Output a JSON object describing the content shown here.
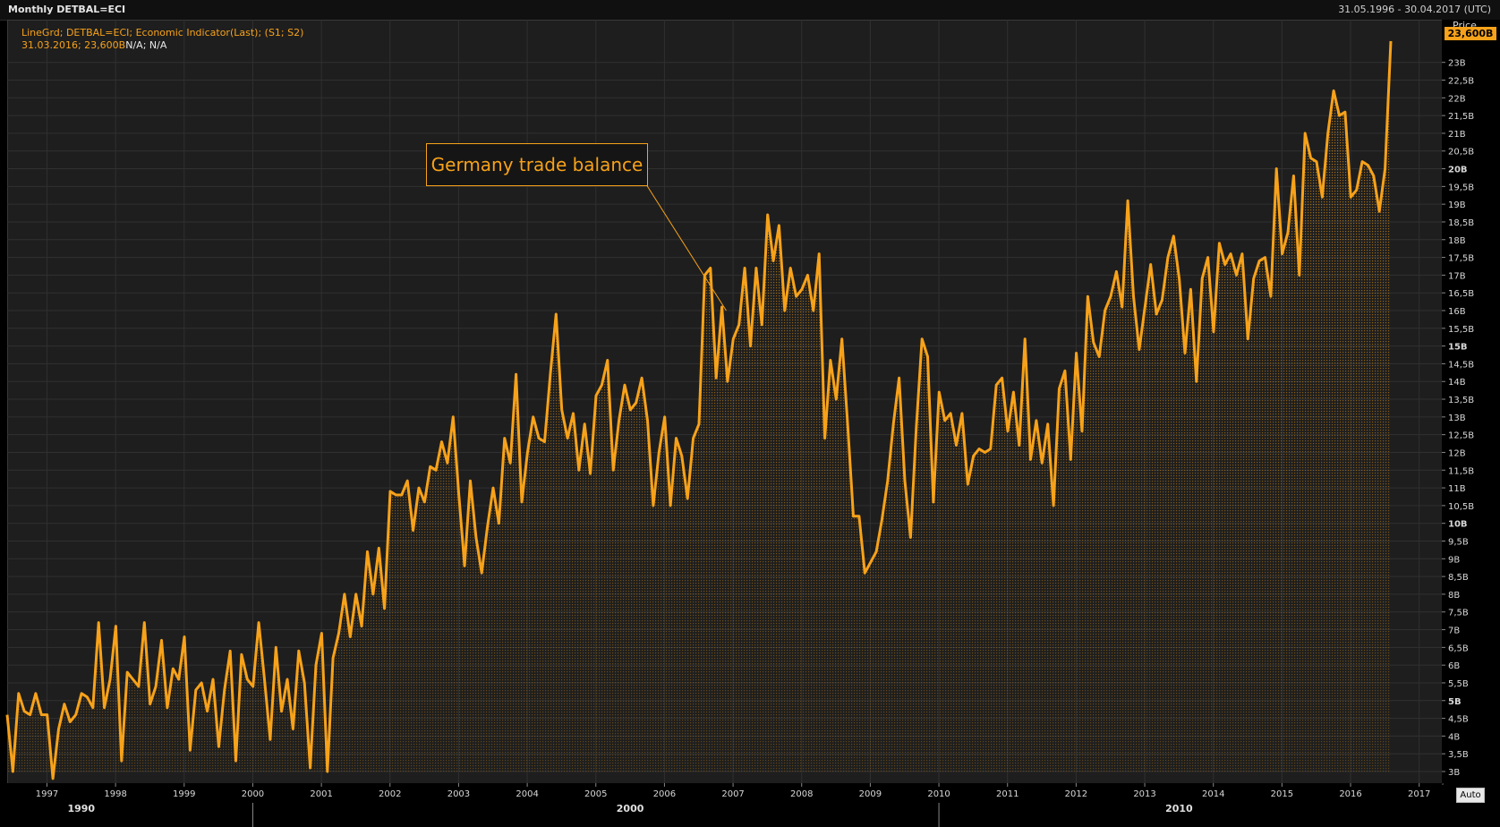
{
  "header": {
    "title": "Monthly DETBAL=ECI",
    "range": "31.05.1996 - 30.04.2017 (UTC)"
  },
  "legend": {
    "line1": "LineGrd; DETBAL=ECI; Economic Indicator(Last); (S1; S2)",
    "line2_date_value": "31.03.2016; 23,600B",
    "line2_na": "N/A; N/A"
  },
  "annotation": {
    "text": "Germany trade balance"
  },
  "price_axis": {
    "header": "Price",
    "last_value": "23,600B",
    "auto_label": "Auto"
  },
  "colors": {
    "line": "#f7a21a",
    "plot_bg": "#1e1e1e",
    "grid": "#303030",
    "axis_text": "#d8d8d8"
  },
  "chart_data": {
    "type": "area",
    "y_unit": "B",
    "ylim": [
      3,
      23.8
    ],
    "y_ticks": [
      {
        "v": 3,
        "label": "3B"
      },
      {
        "v": 3.5,
        "label": "3,5B"
      },
      {
        "v": 4,
        "label": "4B"
      },
      {
        "v": 4.5,
        "label": "4,5B"
      },
      {
        "v": 5,
        "label": "5B",
        "bold": true
      },
      {
        "v": 5.5,
        "label": "5,5B"
      },
      {
        "v": 6,
        "label": "6B"
      },
      {
        "v": 6.5,
        "label": "6,5B"
      },
      {
        "v": 7,
        "label": "7B"
      },
      {
        "v": 7.5,
        "label": "7,5B"
      },
      {
        "v": 8,
        "label": "8B"
      },
      {
        "v": 8.5,
        "label": "8,5B"
      },
      {
        "v": 9,
        "label": "9B"
      },
      {
        "v": 9.5,
        "label": "9,5B"
      },
      {
        "v": 10,
        "label": "10B",
        "bold": true
      },
      {
        "v": 10.5,
        "label": "10,5B"
      },
      {
        "v": 11,
        "label": "11B"
      },
      {
        "v": 11.5,
        "label": "11,5B"
      },
      {
        "v": 12,
        "label": "12B"
      },
      {
        "v": 12.5,
        "label": "12,5B"
      },
      {
        "v": 13,
        "label": "13B"
      },
      {
        "v": 13.5,
        "label": "13,5B"
      },
      {
        "v": 14,
        "label": "14B"
      },
      {
        "v": 14.5,
        "label": "14,5B"
      },
      {
        "v": 15,
        "label": "15B",
        "bold": true
      },
      {
        "v": 15.5,
        "label": "15,5B"
      },
      {
        "v": 16,
        "label": "16B"
      },
      {
        "v": 16.5,
        "label": "16,5B"
      },
      {
        "v": 17,
        "label": "17B"
      },
      {
        "v": 17.5,
        "label": "17,5B"
      },
      {
        "v": 18,
        "label": "18B"
      },
      {
        "v": 18.5,
        "label": "18,5B"
      },
      {
        "v": 19,
        "label": "19B"
      },
      {
        "v": 19.5,
        "label": "19,5B"
      },
      {
        "v": 20,
        "label": "20B",
        "bold": true
      },
      {
        "v": 20.5,
        "label": "20,5B"
      },
      {
        "v": 21,
        "label": "21B"
      },
      {
        "v": 21.5,
        "label": "21,5B"
      },
      {
        "v": 22,
        "label": "22B"
      },
      {
        "v": 22.5,
        "label": "22,5B"
      },
      {
        "v": 23,
        "label": "23B"
      }
    ],
    "x_range": [
      1996.42,
      2017.33
    ],
    "x_ticks": [
      "1997",
      "1998",
      "1999",
      "2000",
      "2001",
      "2002",
      "2003",
      "2004",
      "2005",
      "2006",
      "2007",
      "2008",
      "2009",
      "2010",
      "2011",
      "2012",
      "2013",
      "2014",
      "2015",
      "2016",
      "2017"
    ],
    "decades": [
      {
        "label": "1990",
        "x": 1997.5
      },
      {
        "label": "2000",
        "x": 2005.5
      },
      {
        "label": "2010",
        "x": 2013.5
      }
    ],
    "decade_dividers": [
      2000,
      2010
    ],
    "annotation_target": {
      "x": 2006.9,
      "y": 16.0
    },
    "series": [
      {
        "x_start": 1996.42,
        "x_step": 0.0833333,
        "values": [
          4.6,
          3.0,
          5.2,
          4.7,
          4.6,
          5.2,
          4.6,
          4.6,
          2.8,
          4.2,
          4.9,
          4.4,
          4.6,
          5.2,
          5.1,
          4.8,
          7.2,
          4.8,
          5.6,
          7.1,
          3.3,
          5.8,
          5.6,
          5.4,
          7.2,
          4.9,
          5.4,
          6.7,
          4.8,
          5.9,
          5.6,
          6.8,
          3.6,
          5.3,
          5.5,
          4.7,
          5.6,
          3.7,
          5.3,
          6.4,
          3.3,
          6.3,
          5.6,
          5.4,
          7.2,
          5.6,
          3.9,
          6.5,
          4.7,
          5.6,
          4.2,
          6.4,
          5.5,
          3.1,
          6.0,
          6.9,
          3.0,
          6.2,
          6.9,
          8.0,
          6.8,
          8.0,
          7.1,
          9.2,
          8.0,
          9.3,
          7.6,
          10.9,
          10.8,
          10.8,
          11.2,
          9.8,
          11.0,
          10.6,
          11.6,
          11.5,
          12.3,
          11.7,
          13.0,
          10.8,
          8.8,
          11.2,
          9.6,
          8.6,
          9.9,
          11.0,
          10.0,
          12.4,
          11.7,
          14.2,
          10.6,
          12.0,
          13.0,
          12.4,
          12.3,
          14.2,
          15.9,
          13.2,
          12.4,
          13.1,
          11.5,
          12.8,
          11.4,
          13.6,
          13.9,
          14.6,
          11.5,
          12.9,
          13.9,
          13.2,
          13.4,
          14.1,
          12.9,
          10.5,
          12.0,
          13.0,
          10.5,
          12.4,
          11.9,
          10.7,
          12.4,
          12.8,
          17.0,
          17.2,
          14.1,
          16.1,
          14.0,
          15.2,
          15.6,
          17.2,
          15.0,
          17.2,
          15.6,
          18.7,
          17.4,
          18.4,
          16.0,
          17.2,
          16.4,
          16.6,
          17.0,
          16.0,
          17.6,
          12.4,
          14.6,
          13.5,
          15.2,
          12.8,
          10.2,
          10.2,
          8.6,
          8.9,
          9.2,
          10.1,
          11.2,
          12.8,
          14.1,
          11.2,
          9.6,
          12.7,
          15.2,
          14.7,
          10.6,
          13.7,
          12.9,
          13.1,
          12.2,
          13.1,
          11.1,
          11.9,
          12.1,
          12.0,
          12.1,
          13.9,
          14.1,
          12.6,
          13.7,
          12.2,
          15.2,
          11.8,
          12.9,
          11.7,
          12.8,
          10.5,
          13.8,
          14.3,
          11.8,
          14.8,
          12.6,
          16.4,
          15.1,
          14.7,
          16.0,
          16.4,
          17.1,
          16.1,
          19.1,
          16.4,
          14.9,
          16.1,
          17.3,
          15.9,
          16.3,
          17.5,
          18.1,
          16.9,
          14.8,
          16.6,
          14.0,
          16.9,
          17.5,
          15.4,
          17.9,
          17.3,
          17.6,
          17.0,
          17.6,
          15.2,
          16.9,
          17.4,
          17.5,
          16.4,
          20.0,
          17.6,
          18.2,
          19.8,
          17.0,
          21.0,
          20.3,
          20.2,
          19.2,
          21.0,
          22.2,
          21.5,
          21.6,
          19.2,
          19.4,
          20.2,
          20.1,
          19.8,
          18.8,
          20.0,
          23.6
        ]
      }
    ]
  }
}
